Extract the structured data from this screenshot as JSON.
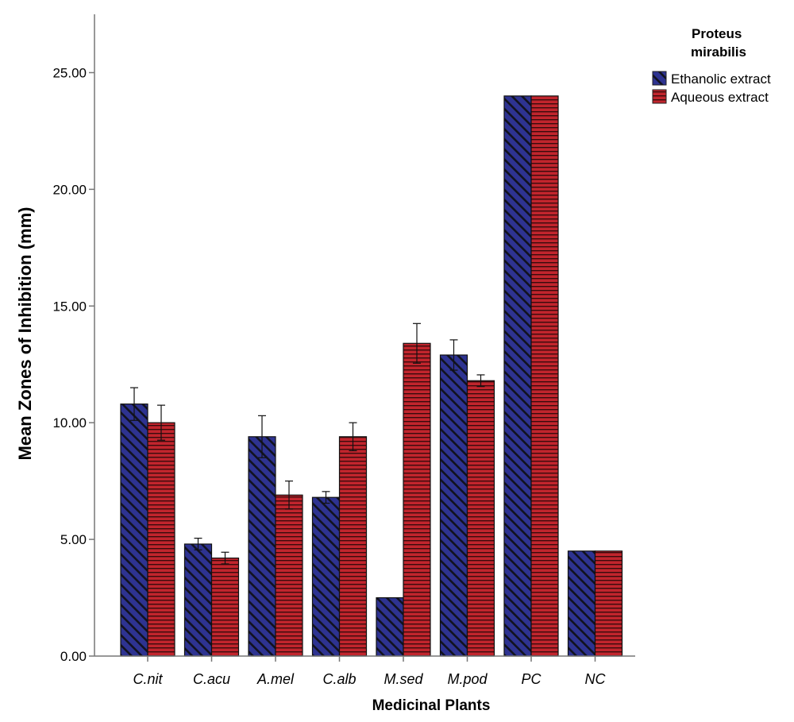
{
  "chart_data": {
    "type": "bar",
    "categories": [
      "C.nit",
      "C.acu",
      "A.mel",
      "C.alb",
      "M.sed",
      "M.pod",
      "PC",
      "NC"
    ],
    "series": [
      {
        "name": "Ethanolic extract",
        "color": "#2e3391",
        "pattern": "diagonal-stripes",
        "values": [
          10.8,
          4.8,
          9.4,
          6.8,
          2.5,
          12.9,
          24.0,
          4.5
        ],
        "error": [
          0.7,
          0.25,
          0.9,
          0.25,
          0.0,
          0.65,
          0.0,
          0.0
        ]
      },
      {
        "name": "Aqueous extract",
        "color": "#b5222a",
        "pattern": "horizontal-stripes",
        "values": [
          10.0,
          4.2,
          6.9,
          9.4,
          13.4,
          11.8,
          24.0,
          4.5
        ],
        "error": [
          0.75,
          0.25,
          0.6,
          0.6,
          0.85,
          0.25,
          0.0,
          0.0
        ]
      }
    ],
    "xlabel": "Medicinal Plants",
    "ylabel": "Mean Zones of Inhibition (mm)",
    "ylim": [
      0,
      27.5
    ],
    "yticks": [
      "0.00",
      "5.00",
      "10.00",
      "15.00",
      "20.00",
      "25.00"
    ],
    "legend_title": "Proteus mirabilis",
    "legend_title_lines": [
      "Proteus",
      "mirabilis"
    ],
    "legend_position": "top-right",
    "grid": false
  }
}
